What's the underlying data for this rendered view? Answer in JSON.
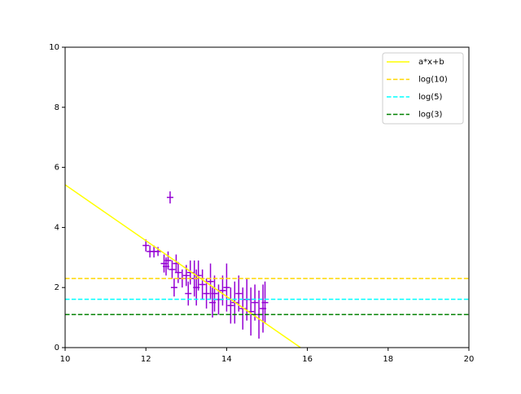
{
  "chart_data": {
    "type": "errorbar",
    "xlim": [
      10,
      20
    ],
    "ylim": [
      0,
      10
    ],
    "xticks": [
      10,
      12,
      14,
      16,
      18,
      20
    ],
    "yticks": [
      0,
      2,
      4,
      6,
      8,
      10
    ],
    "legend": "upper right",
    "points": {
      "color": "#9400d3",
      "x": [
        12.0,
        12.1,
        12.2,
        12.3,
        12.45,
        12.5,
        12.6,
        12.55,
        12.65,
        12.7,
        12.75,
        12.8,
        12.9,
        13.0,
        13.05,
        13.1,
        13.2,
        13.25,
        13.3,
        13.4,
        13.5,
        13.6,
        13.65,
        13.7,
        13.8,
        13.9,
        14.0,
        14.1,
        14.2,
        14.3,
        14.4,
        14.5,
        14.6,
        14.7,
        14.8,
        14.9,
        14.95
      ],
      "values": [
        3.4,
        3.2,
        3.2,
        3.2,
        2.8,
        2.7,
        5.0,
        2.9,
        2.6,
        2.0,
        2.8,
        2.5,
        2.3,
        2.4,
        1.8,
        2.5,
        2.3,
        2.0,
        2.4,
        2.1,
        1.8,
        2.2,
        1.5,
        1.8,
        1.6,
        1.9,
        2.0,
        1.4,
        1.5,
        1.8,
        1.3,
        1.6,
        1.2,
        1.5,
        1.1,
        1.3,
        1.5
      ],
      "errors": [
        0.2,
        0.2,
        0.2,
        0.15,
        0.3,
        0.3,
        0.2,
        0.3,
        0.3,
        0.3,
        0.3,
        0.35,
        0.3,
        0.35,
        0.4,
        0.4,
        0.6,
        0.6,
        0.5,
        0.5,
        0.5,
        0.6,
        0.5,
        0.6,
        0.5,
        0.5,
        0.8,
        0.6,
        0.7,
        0.6,
        0.7,
        0.7,
        0.8,
        0.6,
        0.8,
        0.8,
        0.7
      ]
    },
    "series": [
      {
        "name": "a*x+b",
        "color": "#ffff00",
        "dashed": false,
        "x": [
          10,
          15.83
        ],
        "values": [
          5.42,
          0
        ]
      },
      {
        "name": "log(10)",
        "color": "#ffd700",
        "dashed": true,
        "x": [
          10,
          20
        ],
        "values": [
          2.3,
          2.3
        ]
      },
      {
        "name": "log(5)",
        "color": "#00ffff",
        "dashed": true,
        "x": [
          10,
          20
        ],
        "values": [
          1.61,
          1.61
        ]
      },
      {
        "name": "log(3)",
        "color": "#008000",
        "dashed": true,
        "x": [
          10,
          20
        ],
        "values": [
          1.1,
          1.1
        ]
      }
    ]
  }
}
